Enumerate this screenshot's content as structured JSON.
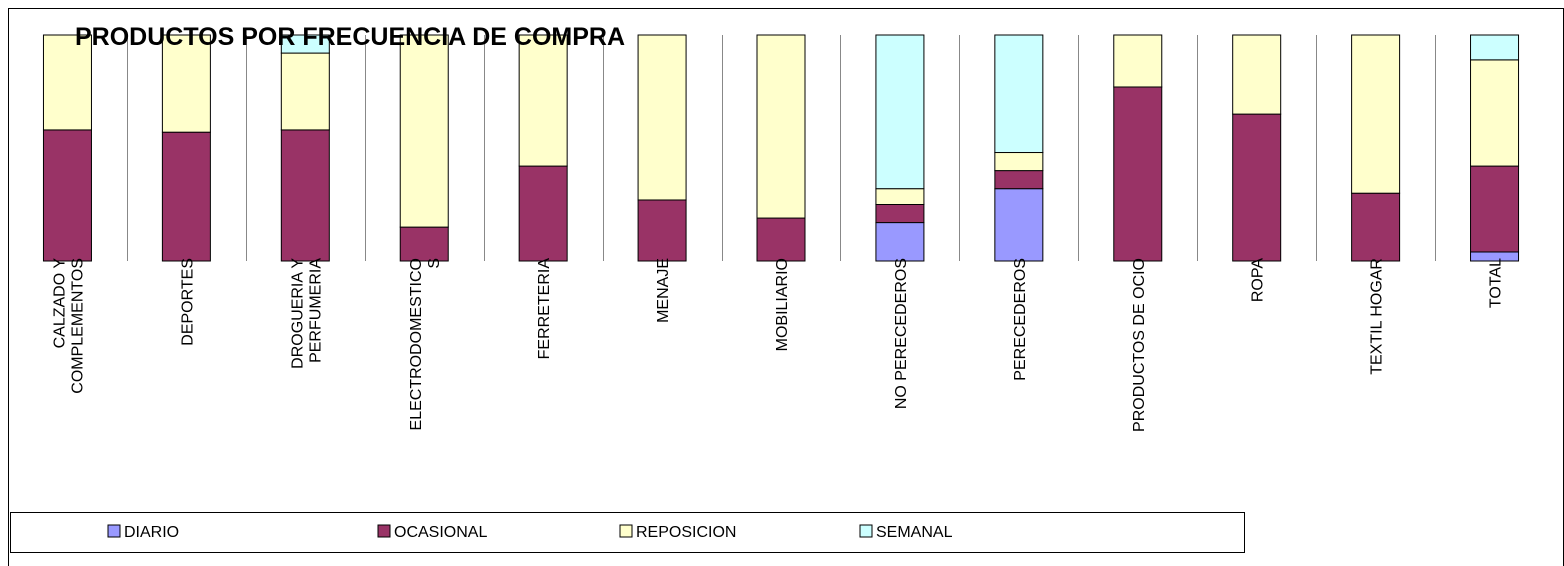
{
  "chart_data": {
    "type": "stacked_bar_100",
    "title": "PRODUCTOS POR FRECUENCIA DE COMPRA",
    "categories": [
      "CALZADO Y\nCOMPLEMENTOS",
      "DEPORTES",
      "DROGUERIA Y\nPERFUMERIA",
      "ELECTRODOMESTICO\nS",
      "FERRETERIA",
      "MENAJE",
      "MOBILIARIO",
      "NO PERECEDEROS",
      "PERECEDEROS",
      "PRODUCTOS DE OCIO",
      "ROPA",
      "TEXTIL HOGAR",
      "TOTAL"
    ],
    "series": [
      {
        "name": "DIARIO",
        "color": "#9999ff",
        "values": [
          0,
          0,
          0,
          0,
          0,
          0,
          0,
          17,
          32,
          0,
          0,
          0,
          4
        ]
      },
      {
        "name": "OCASIONAL",
        "color": "#993366",
        "values": [
          58,
          57,
          58,
          15,
          42,
          27,
          19,
          8,
          8,
          77,
          65,
          30,
          38
        ]
      },
      {
        "name": "REPOSICION",
        "color": "#ffffcc",
        "values": [
          42,
          43,
          34,
          85,
          58,
          73,
          81,
          7,
          8,
          23,
          35,
          70,
          47
        ]
      },
      {
        "name": "SEMANAL",
        "color": "#ccffff",
        "values": [
          0,
          0,
          8,
          0,
          0,
          0,
          0,
          68,
          52,
          0,
          0,
          0,
          11
        ]
      }
    ],
    "ylim": [
      0,
      100
    ],
    "legend": "bottom"
  }
}
